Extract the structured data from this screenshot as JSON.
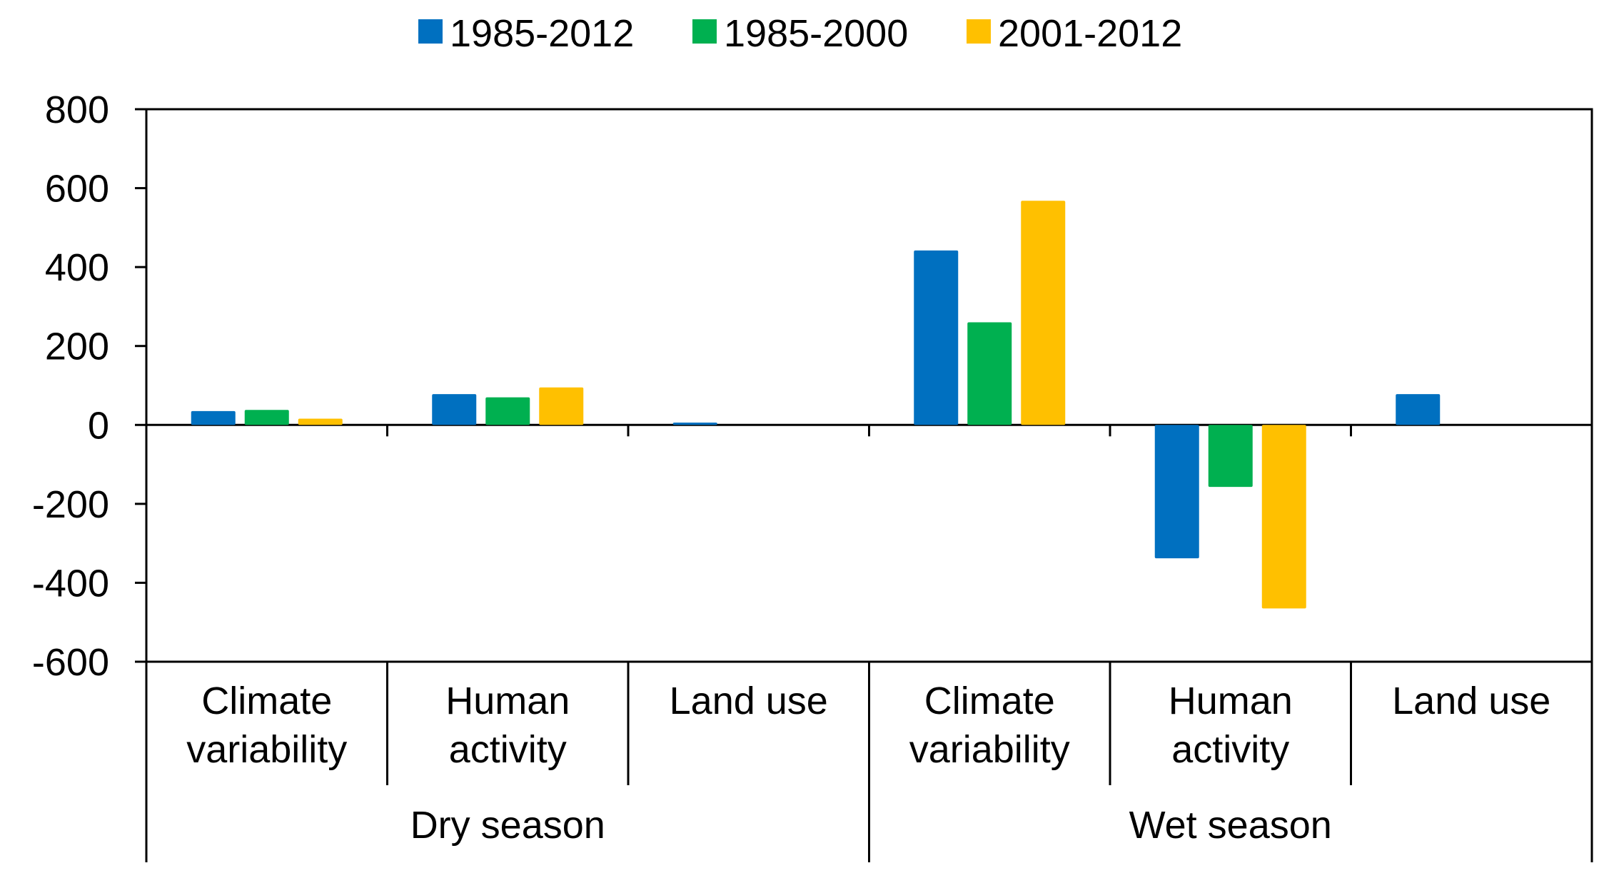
{
  "chart_data": {
    "type": "bar",
    "title": "",
    "xlabel": "",
    "ylabel": "",
    "ylim": [
      -600,
      800
    ],
    "yticks": [
      800,
      600,
      400,
      200,
      0,
      -200,
      -400,
      -600
    ],
    "grid": false,
    "legend_position": "top",
    "groups": [
      {
        "label": "Dry season",
        "categories": [
          "Climate variability",
          "Human activity",
          "Land use"
        ]
      },
      {
        "label": "Wet season",
        "categories": [
          "Climate variability",
          "Human activity",
          "Land use"
        ]
      }
    ],
    "categories": [
      {
        "line1": "Climate",
        "line2": "variability"
      },
      {
        "line1": "Human",
        "line2": "activity"
      },
      {
        "line1": "Land use",
        "line2": ""
      },
      {
        "line1": "Climate",
        "line2": "variability"
      },
      {
        "line1": "Human",
        "line2": "activity"
      },
      {
        "line1": "Land use",
        "line2": ""
      }
    ],
    "series": [
      {
        "name": "1985-2012",
        "color": "#0070C0",
        "values": [
          35,
          78,
          6,
          442,
          -338,
          78
        ]
      },
      {
        "name": "1985-2000",
        "color": "#00B050",
        "values": [
          38,
          70,
          0,
          260,
          -157,
          0
        ]
      },
      {
        "name": "2001-2012",
        "color": "#FFC000",
        "values": [
          16,
          95,
          0,
          568,
          -465,
          0
        ]
      }
    ]
  }
}
